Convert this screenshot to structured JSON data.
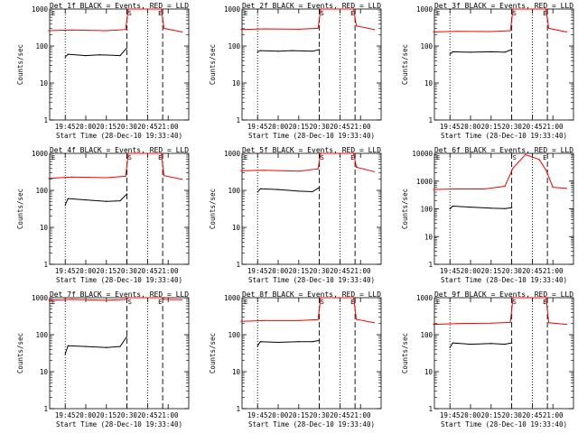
{
  "figure": {
    "start_time_label": "Start Time (28-Dec-10 19:33:40)",
    "ylabel": "Counts/sec",
    "x_ticks": [
      "19:45",
      "20:00",
      "20:15",
      "20:30",
      "20:45",
      "21:00"
    ],
    "marker_S": "S",
    "marker_E": "E",
    "colors": {
      "events": "#000000",
      "lld": "#ff0000",
      "axis": "#000000"
    }
  },
  "chart_data": [
    {
      "type": "line",
      "title": "Det 1f BLACK = Events, RED = LLD",
      "y_scale": "log",
      "ylim": [
        1,
        1000
      ],
      "y_ticks": [
        "1",
        "10",
        "100",
        "1000"
      ],
      "series": [
        {
          "name": "Events",
          "points": [
            [
              "19:45",
              50
            ],
            [
              "19:47",
              60
            ],
            [
              "20:00",
              55
            ],
            [
              "20:10",
              58
            ],
            [
              "20:25",
              55
            ],
            [
              "20:30",
              90
            ]
          ]
        },
        {
          "name": "LLD",
          "points": [
            [
              "19:33",
              260
            ],
            [
              "19:50",
              270
            ],
            [
              "20:15",
              260
            ],
            [
              "20:29",
              280
            ],
            [
              "20:31",
              1000
            ],
            [
              "20:55",
              1000
            ],
            [
              "20:57",
              300
            ],
            [
              "21:10",
              240
            ]
          ]
        }
      ]
    },
    {
      "type": "line",
      "title": "Det 2f BLACK = Events, RED = LLD",
      "y_scale": "log",
      "ylim": [
        1,
        1000
      ],
      "y_ticks": [
        "1",
        "10",
        "100",
        "1000"
      ],
      "series": [
        {
          "name": "Events",
          "points": [
            [
              "19:45",
              70
            ],
            [
              "19:47",
              75
            ],
            [
              "20:00",
              72
            ],
            [
              "20:10",
              75
            ],
            [
              "20:25",
              72
            ],
            [
              "20:30",
              80
            ]
          ]
        },
        {
          "name": "LLD",
          "points": [
            [
              "19:33",
              280
            ],
            [
              "19:50",
              290
            ],
            [
              "20:15",
              285
            ],
            [
              "20:29",
              300
            ],
            [
              "20:31",
              1000
            ],
            [
              "20:55",
              1000
            ],
            [
              "20:57",
              350
            ],
            [
              "21:10",
              280
            ]
          ]
        }
      ]
    },
    {
      "type": "line",
      "title": "Det 3f BLACK = Events, RED = LLD",
      "y_scale": "log",
      "ylim": [
        1,
        1000
      ],
      "y_ticks": [
        "1",
        "10",
        "100",
        "1000"
      ],
      "series": [
        {
          "name": "Events",
          "points": [
            [
              "19:45",
              60
            ],
            [
              "19:47",
              70
            ],
            [
              "20:00",
              68
            ],
            [
              "20:15",
              70
            ],
            [
              "20:25",
              68
            ],
            [
              "20:30",
              80
            ]
          ]
        },
        {
          "name": "LLD",
          "points": [
            [
              "19:33",
              240
            ],
            [
              "19:50",
              250
            ],
            [
              "20:15",
              245
            ],
            [
              "20:29",
              260
            ],
            [
              "20:31",
              1000
            ],
            [
              "20:55",
              1000
            ],
            [
              "20:57",
              300
            ],
            [
              "21:10",
              240
            ]
          ]
        }
      ]
    },
    {
      "type": "line",
      "title": "Det 4f BLACK = Events, RED = LLD",
      "y_scale": "log",
      "ylim": [
        1,
        1000
      ],
      "y_ticks": [
        "1",
        "10",
        "100",
        "1000"
      ],
      "series": [
        {
          "name": "Events",
          "points": [
            [
              "19:45",
              40
            ],
            [
              "19:47",
              60
            ],
            [
              "20:00",
              55
            ],
            [
              "20:15",
              50
            ],
            [
              "20:25",
              52
            ],
            [
              "20:30",
              80
            ]
          ]
        },
        {
          "name": "LLD",
          "points": [
            [
              "19:33",
              210
            ],
            [
              "19:50",
              230
            ],
            [
              "20:15",
              220
            ],
            [
              "20:29",
              240
            ],
            [
              "20:31",
              1000
            ],
            [
              "20:55",
              1000
            ],
            [
              "20:57",
              250
            ],
            [
              "21:10",
              200
            ]
          ]
        }
      ]
    },
    {
      "type": "line",
      "title": "Det 5f BLACK = Events, RED = LLD",
      "y_scale": "log",
      "ylim": [
        1,
        1000
      ],
      "y_ticks": [
        "1",
        "10",
        "100",
        "1000"
      ],
      "series": [
        {
          "name": "Events",
          "points": [
            [
              "19:45",
              90
            ],
            [
              "19:47",
              110
            ],
            [
              "20:00",
              105
            ],
            [
              "20:15",
              95
            ],
            [
              "20:25",
              92
            ],
            [
              "20:30",
              120
            ]
          ]
        },
        {
          "name": "LLD",
          "points": [
            [
              "19:33",
              340
            ],
            [
              "19:50",
              350
            ],
            [
              "20:15",
              330
            ],
            [
              "20:29",
              380
            ],
            [
              "20:31",
              1000
            ],
            [
              "20:55",
              1000
            ],
            [
              "20:57",
              420
            ],
            [
              "21:10",
              320
            ]
          ]
        }
      ]
    },
    {
      "type": "line",
      "title": "Det 6f BLACK = Events, RED = LLD",
      "y_scale": "log",
      "ylim": [
        1,
        10000
      ],
      "y_ticks": [
        "1",
        "10",
        "100",
        "1000",
        "10000"
      ],
      "series": [
        {
          "name": "Events",
          "points": [
            [
              "19:45",
              100
            ],
            [
              "19:47",
              125
            ],
            [
              "20:00",
              115
            ],
            [
              "20:15",
              105
            ],
            [
              "20:25",
              102
            ],
            [
              "20:30",
              110
            ]
          ]
        },
        {
          "name": "LLD",
          "points": [
            [
              "19:33",
              500
            ],
            [
              "19:50",
              520
            ],
            [
              "20:10",
              520
            ],
            [
              "20:25",
              650
            ],
            [
              "20:31",
              3000
            ],
            [
              "20:40",
              9000
            ],
            [
              "20:50",
              6000
            ],
            [
              "20:55",
              2500
            ],
            [
              "21:00",
              600
            ],
            [
              "21:10",
              550
            ]
          ]
        }
      ]
    },
    {
      "type": "line",
      "title": "Det 7f BLACK = Events, RED = LLD",
      "y_scale": "log",
      "ylim": [
        1,
        1000
      ],
      "y_ticks": [
        "1",
        "10",
        "100",
        "1000"
      ],
      "series": [
        {
          "name": "Events",
          "points": [
            [
              "19:45",
              30
            ],
            [
              "19:47",
              50
            ],
            [
              "20:00",
              48
            ],
            [
              "20:15",
              45
            ],
            [
              "20:25",
              48
            ],
            [
              "20:30",
              90
            ]
          ]
        },
        {
          "name": "LLD",
          "points": [
            [
              "19:33",
              850
            ],
            [
              "19:50",
              900
            ],
            [
              "20:15",
              850
            ],
            [
              "20:29",
              900
            ],
            [
              "20:31",
              1000
            ],
            [
              "20:55",
              1000
            ],
            [
              "20:57",
              900
            ],
            [
              "21:10",
              880
            ]
          ]
        }
      ]
    },
    {
      "type": "line",
      "title": "Det 8f BLACK = Events, RED = LLD",
      "y_scale": "log",
      "ylim": [
        1,
        1000
      ],
      "y_ticks": [
        "1",
        "10",
        "100",
        "1000"
      ],
      "series": [
        {
          "name": "Events",
          "points": [
            [
              "19:45",
              50
            ],
            [
              "19:47",
              65
            ],
            [
              "20:00",
              62
            ],
            [
              "20:15",
              65
            ],
            [
              "20:25",
              65
            ],
            [
              "20:30",
              70
            ]
          ]
        },
        {
          "name": "LLD",
          "points": [
            [
              "19:33",
              230
            ],
            [
              "19:50",
              240
            ],
            [
              "20:15",
              240
            ],
            [
              "20:29",
              255
            ],
            [
              "20:31",
              1000
            ],
            [
              "20:55",
              1000
            ],
            [
              "20:57",
              260
            ],
            [
              "21:10",
              210
            ]
          ]
        }
      ]
    },
    {
      "type": "line",
      "title": "Det 9f BLACK = Events, RED = LLD",
      "y_scale": "log",
      "ylim": [
        1,
        1000
      ],
      "y_ticks": [
        "1",
        "10",
        "100",
        "1000"
      ],
      "series": [
        {
          "name": "Events",
          "points": [
            [
              "19:45",
              45
            ],
            [
              "19:47",
              60
            ],
            [
              "20:00",
              55
            ],
            [
              "20:15",
              58
            ],
            [
              "20:25",
              55
            ],
            [
              "20:30",
              60
            ]
          ]
        },
        {
          "name": "LLD",
          "points": [
            [
              "19:33",
              190
            ],
            [
              "19:50",
              200
            ],
            [
              "20:15",
              205
            ],
            [
              "20:29",
              215
            ],
            [
              "20:31",
              1000
            ],
            [
              "20:55",
              1000
            ],
            [
              "20:57",
              210
            ],
            [
              "21:10",
              190
            ]
          ]
        }
      ]
    }
  ]
}
